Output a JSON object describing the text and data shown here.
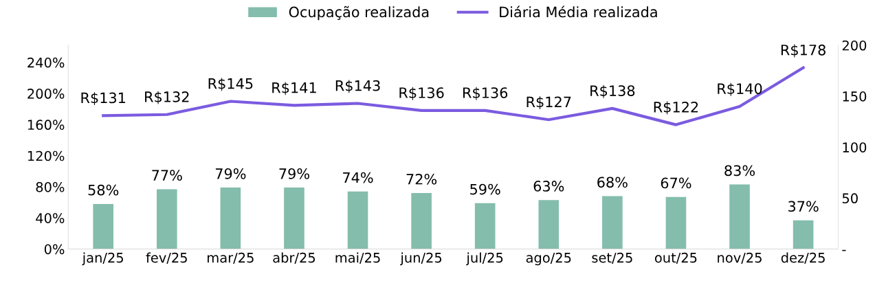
{
  "chart_data": {
    "type": "bar",
    "categories": [
      "jan/25",
      "fev/25",
      "mar/25",
      "abr/25",
      "mai/25",
      "jun/25",
      "jul/25",
      "ago/25",
      "set/25",
      "out/25",
      "nov/25",
      "dez/25"
    ],
    "series": [
      {
        "name": "Ocupação realizada",
        "color": "#84bdac",
        "values": [
          58,
          77,
          79,
          79,
          74,
          72,
          59,
          63,
          68,
          67,
          83,
          37
        ],
        "value_labels": [
          "58%",
          "77%",
          "79%",
          "79%",
          "74%",
          "72%",
          "59%",
          "63%",
          "68%",
          "67%",
          "83%",
          "37%"
        ]
      },
      {
        "name": "Diária Média realizada",
        "type": "line",
        "axis": "y2",
        "color": "#7b5be0",
        "values": [
          131,
          132,
          145,
          141,
          143,
          136,
          136,
          127,
          138,
          122,
          140,
          178
        ],
        "value_labels": [
          "R$131",
          "R$132",
          "R$145",
          "R$141",
          "R$143",
          "R$136",
          "R$136",
          "R$127",
          "R$138",
          "R$122",
          "R$140",
          "R$178"
        ]
      }
    ],
    "ylim": [
      0,
      262
    ],
    "yticks": [
      {
        "value": 0,
        "label": "0%"
      },
      {
        "value": 40,
        "label": "40%"
      },
      {
        "value": 80,
        "label": "80%"
      },
      {
        "value": 120,
        "label": "120%"
      },
      {
        "value": 160,
        "label": "160%"
      },
      {
        "value": 200,
        "label": "200%"
      },
      {
        "value": 240,
        "label": "240%"
      }
    ],
    "y2lim": [
      0,
      200
    ],
    "y2ticks": [
      {
        "value": 0,
        "label": "-"
      },
      50,
      100,
      150,
      200
    ],
    "grid": false,
    "legend": "top",
    "marker": "none",
    "line_style": "solid"
  }
}
